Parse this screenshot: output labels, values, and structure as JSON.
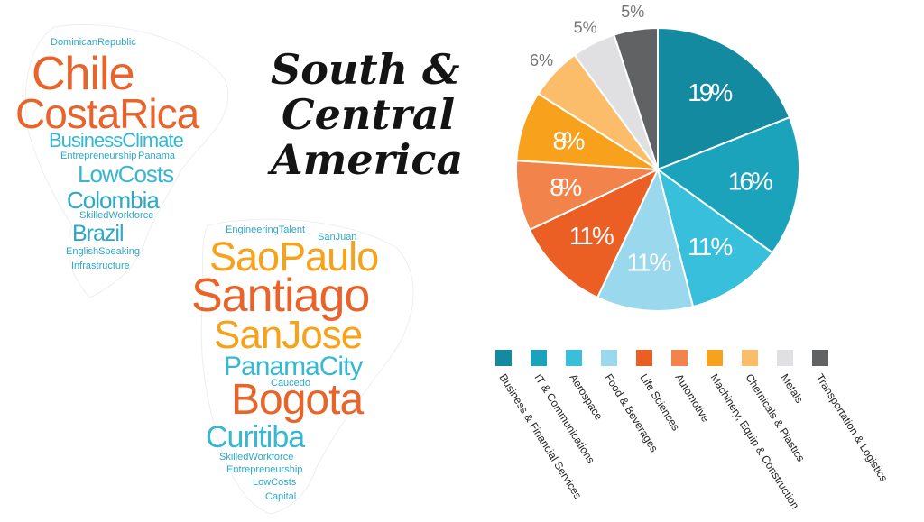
{
  "title_lines": [
    "South &",
    "Central",
    "America"
  ],
  "colors": {
    "orange_dark": "#e8642a",
    "orange": "#f7a21b",
    "teal": "#36b8d3"
  },
  "cloud_north": [
    {
      "text": "DominicanRepublic",
      "color": "#2fa8c5"
    },
    {
      "text": "Chile",
      "color": "#e8642a"
    },
    {
      "text": "CostaRica",
      "color": "#e8642a"
    },
    {
      "text": "BusinessClimate",
      "color": "#36b8d3"
    },
    {
      "text": "Entrepreneurship",
      "color": "#2fa8c5"
    },
    {
      "text": "Panama",
      "color": "#2fa8c5"
    },
    {
      "text": "LowCosts",
      "color": "#36b8d3"
    },
    {
      "text": "Colombia",
      "color": "#2fa8c5"
    },
    {
      "text": "SkilledWorkforce",
      "color": "#2fa8c5"
    },
    {
      "text": "Brazil",
      "color": "#2fa8c5"
    },
    {
      "text": "EnglishSpeaking",
      "color": "#2fa8c5"
    },
    {
      "text": "Infrastructure",
      "color": "#2fa8c5"
    }
  ],
  "cloud_south": [
    {
      "text": "EngineeringTalent",
      "color": "#2fa8c5"
    },
    {
      "text": "SanJuan",
      "color": "#2fa8c5"
    },
    {
      "text": "SaoPaulo",
      "color": "#f7a21b"
    },
    {
      "text": "Santiago",
      "color": "#e8642a"
    },
    {
      "text": "SanJose",
      "color": "#f7a21b"
    },
    {
      "text": "PanamaCity",
      "color": "#36b8d3"
    },
    {
      "text": "Caucedo",
      "color": "#2fa8c5"
    },
    {
      "text": "Bogota",
      "color": "#e8642a"
    },
    {
      "text": "Curitiba",
      "color": "#36b8d3"
    },
    {
      "text": "SkilledWorkforce",
      "color": "#2fa8c5"
    },
    {
      "text": "Entrepreneurship",
      "color": "#2fa8c5"
    },
    {
      "text": "LowCosts",
      "color": "#2fa8c5"
    },
    {
      "text": "Capital",
      "color": "#2fa8c5"
    }
  ],
  "chart_data": {
    "type": "pie",
    "start": "12 o'clock",
    "direction": "clockwise",
    "unit": "%",
    "slices": [
      {
        "label": "Business & Financial Services",
        "value": 19,
        "color": "#138aa0"
      },
      {
        "label": "IT & Communications",
        "value": 16,
        "color": "#1aa3bb"
      },
      {
        "label": "Aerospace",
        "value": 11,
        "color": "#37bfdc"
      },
      {
        "label": "Food & Beverages",
        "value": 11,
        "color": "#9ad8ee"
      },
      {
        "label": "Life Sciences",
        "value": 11,
        "color": "#ec5f24"
      },
      {
        "label": "Automotive",
        "value": 8,
        "color": "#f2834b"
      },
      {
        "label": "Machinery, Equip & Construction",
        "value": 8,
        "color": "#f7a11c"
      },
      {
        "label": "Chemicals & Plastics",
        "value": 6,
        "color": "#fcbd6a"
      },
      {
        "label": "Metals",
        "value": 5,
        "color": "#e0e0e2"
      },
      {
        "label": "Transportation & Logistics",
        "value": 5,
        "color": "#616264"
      }
    ],
    "legend": {
      "position": "bottom",
      "label_orientation": "diagonal"
    }
  }
}
